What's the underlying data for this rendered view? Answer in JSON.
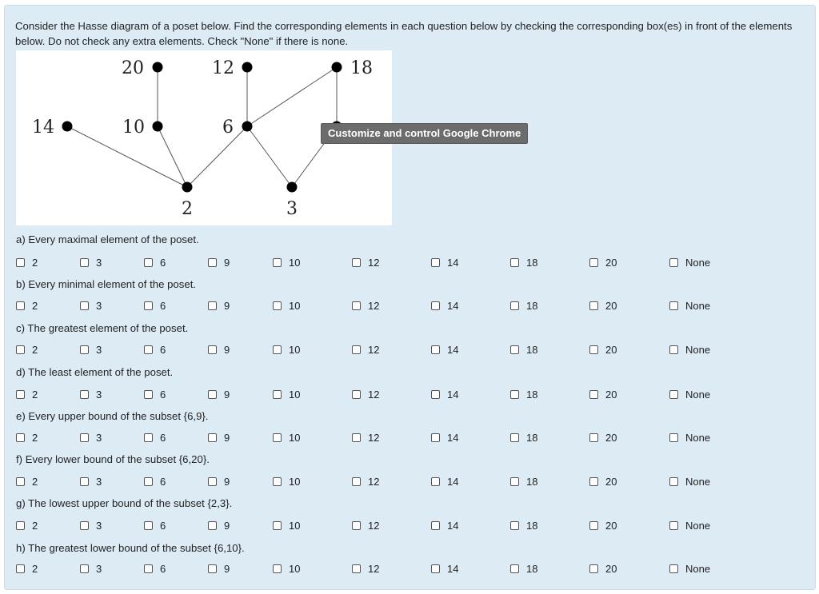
{
  "prompt": "Consider the Hasse diagram of a poset below. Find the corresponding elements in each question below by checking the corresponding box(es) in front of the elements below. Do not check any extra elements. Check \"None\" if there is none.",
  "diagram": {
    "nodes": [
      "20",
      "12",
      "18",
      "14",
      "10",
      "6",
      "2",
      "3"
    ]
  },
  "tooltip": "Customize and control Google Chrome",
  "options": [
    "2",
    "3",
    "6",
    "9",
    "10",
    "12",
    "14",
    "18",
    "20",
    "None"
  ],
  "questions": [
    {
      "label": "a) Every maximal element of the poset."
    },
    {
      "label": "b) Every minimal element of the poset."
    },
    {
      "label": "c) The greatest element of the poset."
    },
    {
      "label": "d) The least element of the poset."
    },
    {
      "label": "e) Every upper bound of the subset {6,9}."
    },
    {
      "label": "f) Every lower bound of the subset {6,20}."
    },
    {
      "label": "g) The lowest upper bound of the subset {2,3}."
    },
    {
      "label": "h) The greatest lower bound of the subset {6,10}."
    }
  ]
}
